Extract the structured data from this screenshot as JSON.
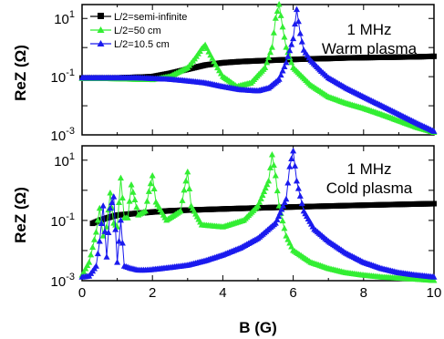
{
  "chart_data": [
    {
      "type": "scatter",
      "panel": "top",
      "annotation": [
        "1 MHz",
        "Warm plasma"
      ],
      "ylabel": "ReZ (Ω)",
      "xlabel": "",
      "xlim": [
        0,
        10
      ],
      "ylim": [
        0.001,
        30
      ],
      "yscale": "log",
      "yticks": [
        "10^-3",
        "10^-1",
        "10^1"
      ],
      "legend": {
        "placement": "top-left",
        "entries": [
          "L/2=semi-infinite",
          "L/2=50 cm",
          "L/2=10.5 cm"
        ]
      },
      "series": [
        {
          "name": "L/2=semi-infinite",
          "color": "#000000",
          "marker": "square",
          "x": [
            0,
            0.5,
            1,
            1.5,
            2,
            2.5,
            3,
            3.5,
            4,
            4.5,
            5,
            5.5,
            6,
            6.5,
            7,
            7.5,
            8,
            8.5,
            9,
            9.5,
            10
          ],
          "y": [
            0.09,
            0.09,
            0.09,
            0.095,
            0.1,
            0.13,
            0.18,
            0.25,
            0.3,
            0.33,
            0.35,
            0.37,
            0.39,
            0.41,
            0.42,
            0.44,
            0.45,
            0.46,
            0.47,
            0.48,
            0.5
          ]
        },
        {
          "name": "L/2=50 cm",
          "color": "#33ee33",
          "marker": "triangle",
          "x": [
            0,
            0.5,
            1,
            1.5,
            2,
            2.5,
            3,
            3.2,
            3.4,
            3.5,
            3.6,
            3.8,
            4,
            4.4,
            4.8,
            5.2,
            5.4,
            5.5,
            5.6,
            5.7,
            5.8,
            6,
            6.5,
            7,
            7.5,
            8,
            8.5,
            9,
            9.5,
            10
          ],
          "y": [
            0.085,
            0.085,
            0.083,
            0.08,
            0.078,
            0.1,
            0.2,
            0.4,
            0.9,
            1.2,
            0.7,
            0.25,
            0.1,
            0.045,
            0.06,
            0.2,
            1,
            10,
            30,
            5,
            1,
            0.2,
            0.05,
            0.02,
            0.012,
            0.008,
            0.005,
            0.003,
            0.0018,
            0.0012
          ]
        },
        {
          "name": "L/2=10.5 cm",
          "color": "#1a1aee",
          "marker": "triangle",
          "x": [
            0,
            0.5,
            1,
            1.5,
            2,
            2.5,
            3,
            3.5,
            4,
            4.5,
            5,
            5.3,
            5.6,
            5.8,
            6,
            6.1,
            6.2,
            6.3,
            6.5,
            6.8,
            7,
            7.5,
            8,
            8.5,
            9,
            9.5,
            10
          ],
          "y": [
            0.09,
            0.09,
            0.09,
            0.09,
            0.085,
            0.08,
            0.07,
            0.06,
            0.045,
            0.035,
            0.032,
            0.04,
            0.08,
            0.3,
            2,
            20,
            3,
            0.8,
            0.35,
            0.15,
            0.09,
            0.04,
            0.02,
            0.01,
            0.005,
            0.0025,
            0.0013
          ]
        }
      ]
    },
    {
      "type": "scatter",
      "panel": "bottom",
      "annotation": [
        "1 MHz",
        "Cold plasma"
      ],
      "ylabel": "ReZ (Ω)",
      "xlabel": "B (G)",
      "xlim": [
        0,
        10
      ],
      "ylim": [
        0.001,
        30
      ],
      "yscale": "log",
      "xticks": [
        "0",
        "2",
        "4",
        "6",
        "8",
        "10"
      ],
      "yticks": [
        "10^-3",
        "10^-1",
        "10^1"
      ],
      "series": [
        {
          "name": "L/2=semi-infinite",
          "color": "#000000",
          "marker": "square",
          "x": [
            0.3,
            0.5,
            0.7,
            1,
            1.5,
            2,
            2.5,
            3,
            3.5,
            4,
            4.5,
            5,
            5.5,
            6,
            6.5,
            7,
            7.5,
            8,
            8.5,
            9,
            9.5,
            10
          ],
          "y": [
            0.08,
            0.1,
            0.12,
            0.15,
            0.17,
            0.19,
            0.21,
            0.22,
            0.23,
            0.24,
            0.25,
            0.26,
            0.27,
            0.28,
            0.29,
            0.3,
            0.31,
            0.32,
            0.33,
            0.34,
            0.35,
            0.36
          ]
        },
        {
          "name": "L/2=50 cm",
          "color": "#33ee33",
          "marker": "triangle",
          "x": [
            0,
            0.2,
            0.4,
            0.5,
            0.6,
            0.7,
            0.8,
            0.9,
            1.0,
            1.1,
            1.2,
            1.3,
            1.4,
            1.6,
            1.8,
            1.9,
            2.0,
            2.1,
            2.4,
            2.8,
            2.9,
            3.0,
            3.1,
            3.4,
            4.0,
            4.6,
            5.0,
            5.3,
            5.4,
            5.5,
            5.6,
            5.8,
            6.0,
            6.5,
            7,
            7.5,
            8,
            8.5,
            9,
            9.5,
            10
          ],
          "y": [
            0.0015,
            0.004,
            0.04,
            0.25,
            0.03,
            0.06,
            0.8,
            0.08,
            0.06,
            2.5,
            0.12,
            0.12,
            1.5,
            0.15,
            0.2,
            0.9,
            3,
            0.4,
            0.1,
            0.2,
            1,
            4,
            0.3,
            0.07,
            0.06,
            0.1,
            0.3,
            2,
            15,
            3,
            0.3,
            0.03,
            0.01,
            0.004,
            0.0025,
            0.0018,
            0.0015,
            0.0013,
            0.0012,
            0.0011,
            0.001
          ]
        },
        {
          "name": "L/2=10.5 cm",
          "color": "#1a1aee",
          "marker": "triangle",
          "x": [
            0,
            0.2,
            0.4,
            0.5,
            0.6,
            0.7,
            0.8,
            0.9,
            1.0,
            1.1,
            1.2,
            1.4,
            1.6,
            1.8,
            2.0,
            2.4,
            3.0,
            3.5,
            4.0,
            4.5,
            5.0,
            5.5,
            5.8,
            5.9,
            6.0,
            6.1,
            6.3,
            6.6,
            7,
            7.5,
            8,
            8.5,
            9,
            9.5,
            10
          ],
          "y": [
            0.0013,
            0.0014,
            0.003,
            0.02,
            0.3,
            0.006,
            0.25,
            0.6,
            0.004,
            0.1,
            0.003,
            0.0025,
            0.0022,
            0.0022,
            0.0023,
            0.0026,
            0.0032,
            0.0045,
            0.007,
            0.012,
            0.025,
            0.08,
            0.5,
            6,
            20,
            2,
            0.2,
            0.05,
            0.02,
            0.008,
            0.004,
            0.0025,
            0.0018,
            0.0015,
            0.0013
          ]
        }
      ]
    }
  ]
}
